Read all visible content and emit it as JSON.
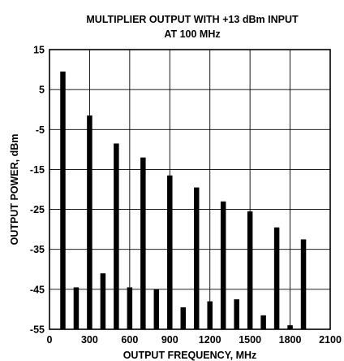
{
  "chart_data": {
    "type": "bar",
    "title": [
      "MULTIPLIER OUTPUT WITH +13 dBm INPUT",
      "AT 100 MHz"
    ],
    "xlabel": "OUTPUT FREQUENCY, MHz",
    "ylabel": "OUTPUT POWER, dBm",
    "xlim": [
      0,
      2100
    ],
    "ylim": [
      -55,
      15
    ],
    "xticks": [
      "0",
      "300",
      "600",
      "900",
      "1200",
      "1500",
      "1800",
      "2100"
    ],
    "yticks": [
      "15",
      "5",
      "-5",
      "-15",
      "-25",
      "-35",
      "-45",
      "-55"
    ],
    "grid": true,
    "x": [
      100,
      200,
      300,
      400,
      500,
      600,
      700,
      800,
      900,
      1000,
      1100,
      1200,
      1300,
      1400,
      1500,
      1600,
      1700,
      1800,
      1900
    ],
    "values": [
      9.5,
      -44.5,
      -1.5,
      -41,
      -8.5,
      -44.5,
      -12,
      -45,
      -16.5,
      -49.5,
      -19.5,
      -48,
      -23,
      -47.5,
      -25.5,
      -51.5,
      -29.5,
      -54,
      -32.5
    ]
  }
}
